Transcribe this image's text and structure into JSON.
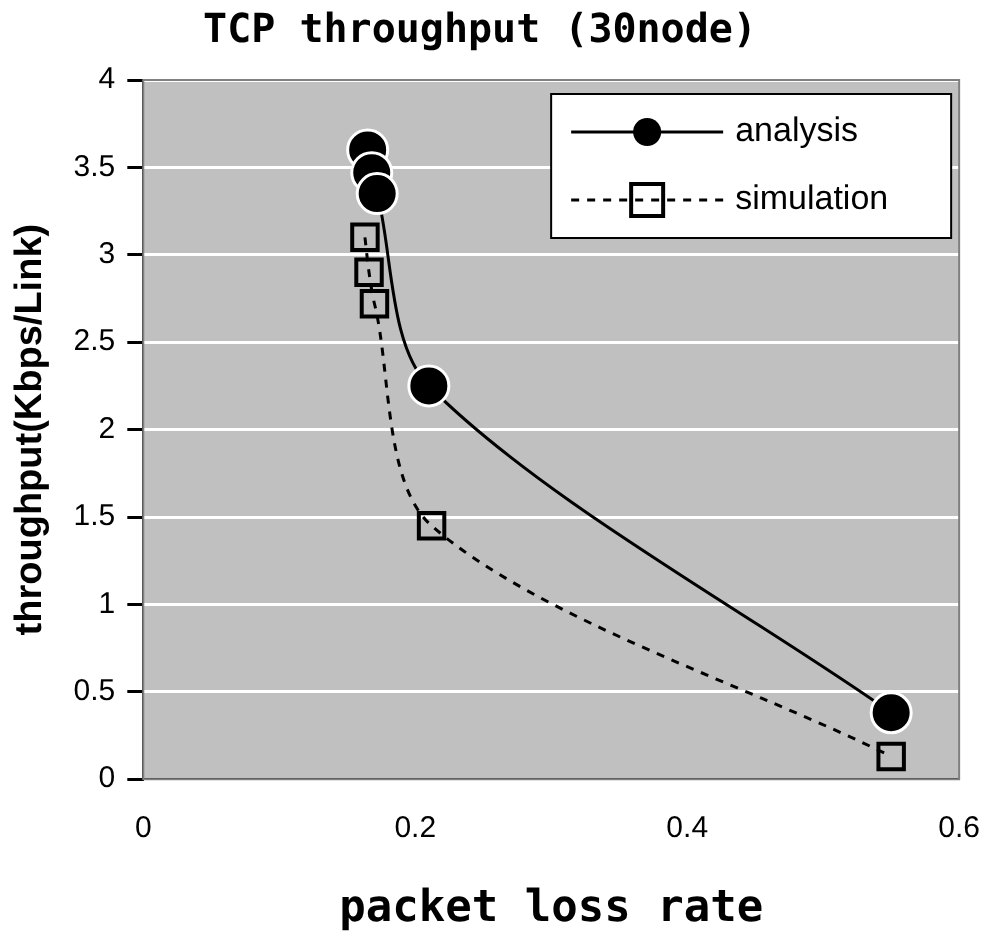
{
  "chart_data": {
    "type": "line",
    "title": "TCP throughput (30node)",
    "xlabel": "packet loss rate",
    "ylabel": "throughput(Kbps/Link)",
    "xlim": [
      0,
      0.6
    ],
    "xticks": [
      0,
      0.2,
      0.4,
      0.6
    ],
    "ylim": [
      0,
      4
    ],
    "yticks": [
      0,
      0.5,
      1,
      1.5,
      2,
      2.5,
      3,
      3.5,
      4
    ],
    "grid": "y",
    "legend": "top right",
    "series": [
      {
        "name": "analysis",
        "color": "#000000",
        "marker": "circle",
        "line_style": "solid",
        "x": [
          0.165,
          0.168,
          0.172,
          0.21,
          0.55
        ],
        "values": [
          3.6,
          3.47,
          3.35,
          2.25,
          0.38
        ]
      },
      {
        "name": "simulation",
        "color": "#000000",
        "marker": "square",
        "line_style": "dashed",
        "x": [
          0.163,
          0.166,
          0.17,
          0.212,
          0.55
        ],
        "values": [
          3.1,
          2.9,
          2.72,
          1.45,
          0.13
        ]
      }
    ]
  }
}
